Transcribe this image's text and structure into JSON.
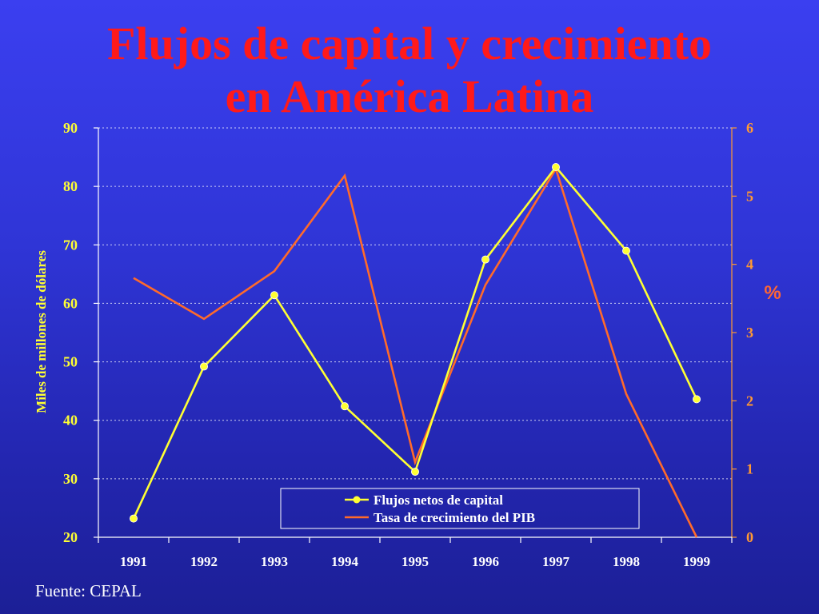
{
  "title_line1": "Flujos de capital y crecimiento",
  "title_line2": "en América Latina",
  "source": "Fuente: CEPAL",
  "colors": {
    "capital_line": "#ffff33",
    "gdp_line": "#ff6a2a",
    "title": "#ff1a1a",
    "left_axis_text": "#ffff33",
    "right_axis_text": "#ff9933"
  },
  "chart_data": {
    "type": "line",
    "categories": [
      "1991",
      "1992",
      "1993",
      "1994",
      "1995",
      "1996",
      "1997",
      "1998",
      "1999"
    ],
    "ylabel_left": "Miles de millones de dólares",
    "ylabel_right": "%",
    "ylim_left": [
      20,
      90
    ],
    "yticks_left": [
      "20",
      "30",
      "40",
      "50",
      "60",
      "70",
      "80",
      "90"
    ],
    "ylim_right": [
      0,
      6
    ],
    "yticks_right": [
      "0",
      "1",
      "2",
      "3",
      "4",
      "5",
      "6"
    ],
    "grid": true,
    "legend_position": "bottom-center",
    "series": [
      {
        "name": "Flujos netos de capital",
        "axis": "left",
        "markers": true,
        "values": [
          23.2,
          49.2,
          61.4,
          42.4,
          31.2,
          67.5,
          83.3,
          69.0,
          43.6
        ]
      },
      {
        "name": "Tasa de crecimiento del PIB",
        "axis": "right",
        "markers": false,
        "values": [
          3.8,
          3.2,
          3.9,
          5.3,
          1.1,
          3.7,
          5.4,
          2.1,
          0.0
        ]
      }
    ]
  }
}
